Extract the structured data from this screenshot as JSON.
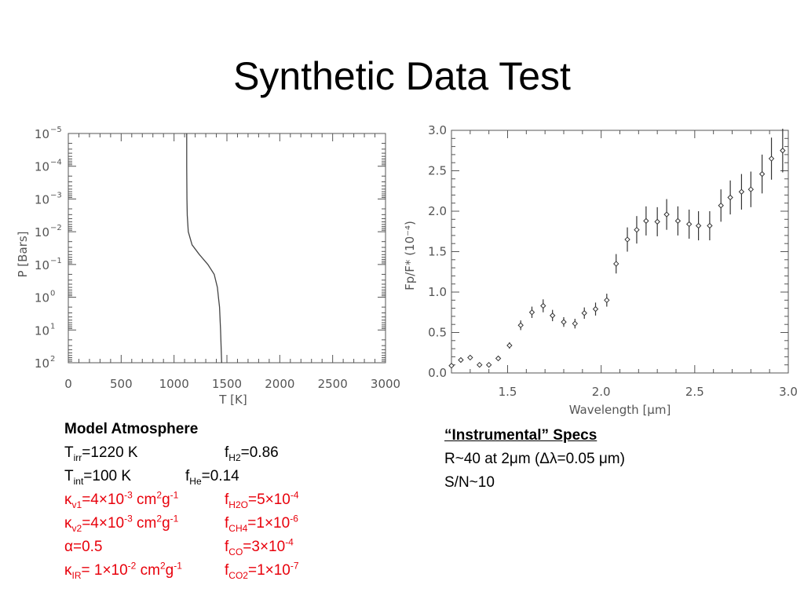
{
  "title": "Synthetic Data Test",
  "tp_chart": {
    "type": "line",
    "xlabel": "T [K]",
    "ylabel": "P [Bars]",
    "xlim": [
      0,
      3000
    ],
    "ylim_exp": [
      -5,
      2
    ],
    "x_ticks": [
      "0",
      "500",
      "1000",
      "1500",
      "2000",
      "2500",
      "3000"
    ],
    "y_ticks": [
      {
        "base": "10",
        "exp": "−5"
      },
      {
        "base": "10",
        "exp": "−4"
      },
      {
        "base": "10",
        "exp": "−3"
      },
      {
        "base": "10",
        "exp": "−2"
      },
      {
        "base": "10",
        "exp": "−1"
      },
      {
        "base": "10",
        "exp": "0"
      },
      {
        "base": "10",
        "exp": "1"
      },
      {
        "base": "10",
        "exp": "2"
      }
    ],
    "profile": [
      {
        "logP": -5.0,
        "T": 1120
      },
      {
        "logP": -4.0,
        "T": 1120
      },
      {
        "logP": -3.0,
        "T": 1122
      },
      {
        "logP": -2.5,
        "T": 1125
      },
      {
        "logP": -2.0,
        "T": 1135
      },
      {
        "logP": -1.6,
        "T": 1170
      },
      {
        "logP": -1.3,
        "T": 1240
      },
      {
        "logP": -1.0,
        "T": 1320
      },
      {
        "logP": -0.7,
        "T": 1380
      },
      {
        "logP": -0.3,
        "T": 1410
      },
      {
        "logP": 0.0,
        "T": 1420
      },
      {
        "logP": 0.3,
        "T": 1430
      },
      {
        "logP": 1.0,
        "T": 1440
      },
      {
        "logP": 2.0,
        "T": 1450
      }
    ]
  },
  "chart_data": {
    "type": "scatter",
    "xlabel": "Wavelength [μm]",
    "ylabel": "Fp/F* (10⁻⁴)",
    "xlim": [
      1.2,
      3.0
    ],
    "ylim": [
      0.0,
      3.0
    ],
    "x_ticks": [
      "1.5",
      "2.0",
      "2.5",
      "3.0"
    ],
    "y_ticks": [
      "0.0",
      "0.5",
      "1.0",
      "1.5",
      "2.0",
      "2.5",
      "3.0"
    ],
    "points": [
      {
        "x": 1.2,
        "y": 0.09,
        "err": 0.03
      },
      {
        "x": 1.25,
        "y": 0.16,
        "err": 0.03
      },
      {
        "x": 1.3,
        "y": 0.19,
        "err": 0.03
      },
      {
        "x": 1.35,
        "y": 0.1,
        "err": 0.03
      },
      {
        "x": 1.4,
        "y": 0.1,
        "err": 0.03
      },
      {
        "x": 1.45,
        "y": 0.18,
        "err": 0.03
      },
      {
        "x": 1.51,
        "y": 0.34,
        "err": 0.04
      },
      {
        "x": 1.57,
        "y": 0.59,
        "err": 0.06
      },
      {
        "x": 1.63,
        "y": 0.75,
        "err": 0.07
      },
      {
        "x": 1.69,
        "y": 0.83,
        "err": 0.08
      },
      {
        "x": 1.74,
        "y": 0.71,
        "err": 0.07
      },
      {
        "x": 1.8,
        "y": 0.63,
        "err": 0.06
      },
      {
        "x": 1.86,
        "y": 0.61,
        "err": 0.06
      },
      {
        "x": 1.91,
        "y": 0.74,
        "err": 0.07
      },
      {
        "x": 1.97,
        "y": 0.79,
        "err": 0.08
      },
      {
        "x": 2.03,
        "y": 0.9,
        "err": 0.08
      },
      {
        "x": 2.08,
        "y": 1.35,
        "err": 0.12
      },
      {
        "x": 2.14,
        "y": 1.65,
        "err": 0.15
      },
      {
        "x": 2.19,
        "y": 1.77,
        "err": 0.17
      },
      {
        "x": 2.24,
        "y": 1.88,
        "err": 0.18
      },
      {
        "x": 2.3,
        "y": 1.87,
        "err": 0.18
      },
      {
        "x": 2.35,
        "y": 1.96,
        "err": 0.19
      },
      {
        "x": 2.41,
        "y": 1.88,
        "err": 0.18
      },
      {
        "x": 2.47,
        "y": 1.84,
        "err": 0.18
      },
      {
        "x": 2.52,
        "y": 1.82,
        "err": 0.18
      },
      {
        "x": 2.58,
        "y": 1.82,
        "err": 0.18
      },
      {
        "x": 2.64,
        "y": 2.07,
        "err": 0.2
      },
      {
        "x": 2.69,
        "y": 2.17,
        "err": 0.21
      },
      {
        "x": 2.75,
        "y": 2.24,
        "err": 0.22
      },
      {
        "x": 2.8,
        "y": 2.27,
        "err": 0.22
      },
      {
        "x": 2.86,
        "y": 2.46,
        "err": 0.24
      },
      {
        "x": 2.91,
        "y": 2.65,
        "err": 0.26
      },
      {
        "x": 2.97,
        "y": 2.75,
        "err": 0.27
      }
    ]
  },
  "model": {
    "header": "Model Atmosphere",
    "rows": [
      {
        "left_main": "T",
        "left_sub": "irr",
        "left_text": "=1220 K",
        "right_main": "f",
        "right_sub": "H2",
        "right_text": "=0.86",
        "red": false,
        "right_col": 204
      },
      {
        "left_main": "T",
        "left_sub": "int",
        "left_text": "=100 K",
        "right_main": "f",
        "right_sub": "He",
        "right_text": "=0.14",
        "red": false,
        "right_col": 154
      },
      {
        "left_main": "κ",
        "left_sub": "v1",
        "left_text": "=4×10",
        "left_sup": "-3",
        "left_tail": " cm",
        "left_sup2": "2",
        "left_tail2": "g",
        "left_sup3": "-1",
        "right_main": "f",
        "right_sub": "H2O",
        "right_text": "=5×10",
        "right_sup": "-4",
        "red": true,
        "right_col": 204
      },
      {
        "left_main": "κ",
        "left_sub": "v2",
        "left_text": "=4×10",
        "left_sup": "-3",
        "left_tail": " cm",
        "left_sup2": "2",
        "left_tail2": "g",
        "left_sup3": "-1",
        "right_main": "f",
        "right_sub": "CH4",
        "right_text": "=1×10",
        "right_sup": "-6",
        "red": true,
        "right_col": 204
      },
      {
        "left_main": "α=0.5",
        "right_main": "f",
        "right_sub": "CO",
        "right_text": "=3×10",
        "right_sup": "-4",
        "red": true,
        "right_col": 204
      },
      {
        "left_main": "κ",
        "left_sub": "IR",
        "left_text": "= 1×10",
        "left_sup": "-2",
        "left_tail": " cm",
        "left_sup2": "2",
        "left_tail2": "g",
        "left_sup3": "-1",
        "right_main": "f",
        "right_sub": "CO2",
        "right_text": "=1×10",
        "right_sup": "-7",
        "red": true,
        "right_col": 204
      }
    ]
  },
  "specs": {
    "header": "“Instrumental” Specs",
    "line1": "R~40 at 2μm (Δλ=0.05 μm)",
    "line2": "S/N~10"
  },
  "colors": {
    "red": "#e8000b",
    "axis": "#555555",
    "curve": "#444444"
  }
}
